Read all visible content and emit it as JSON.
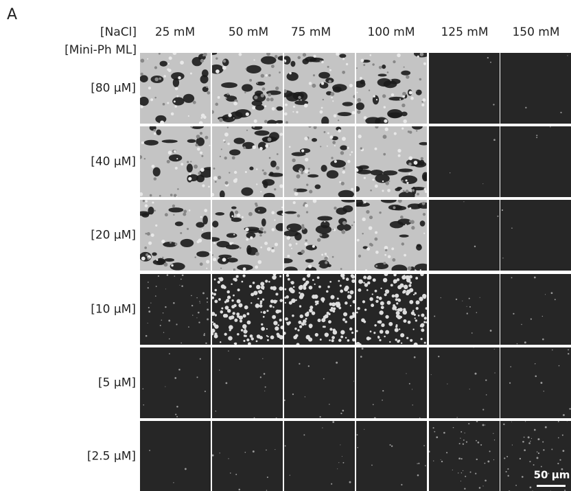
{
  "panel_label": "A",
  "header": {
    "column_axis_label": "[NaCl]",
    "row_axis_label": "[Mini-Ph ML]"
  },
  "columns": [
    "25 mM",
    "50 mM",
    "75 mM",
    "100 mM",
    "125 mM",
    "150 mM"
  ],
  "rows": [
    "[80 μM]",
    "[40 μM]",
    "[20 μM]",
    "[10 μM]",
    "[5 μM]",
    "[2.5 μM]"
  ],
  "scale_bar": "50 μm"
}
